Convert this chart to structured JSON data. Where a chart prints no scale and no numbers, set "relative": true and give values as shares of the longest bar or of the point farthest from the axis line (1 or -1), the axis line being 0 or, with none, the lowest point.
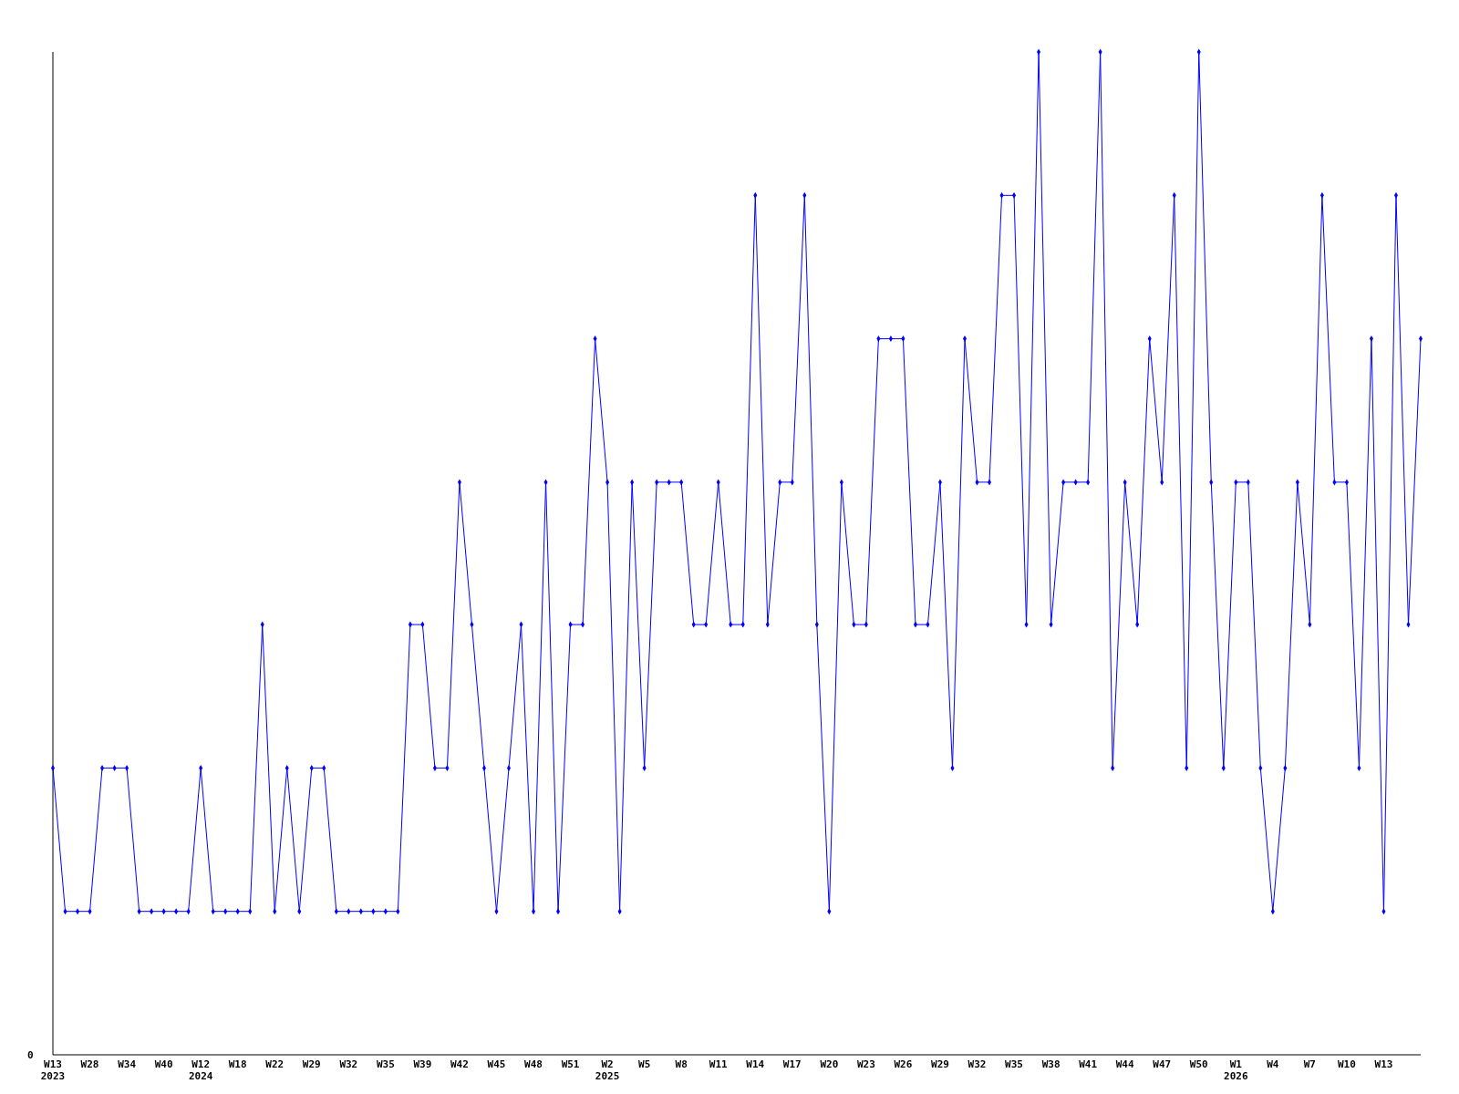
{
  "chart_data": {
    "type": "line",
    "relative": true,
    "marker": "diamond",
    "line_style": "solid",
    "annotations": [
      "0"
    ],
    "categories": [
      "W13\n2023",
      null,
      null,
      "W28",
      null,
      null,
      "W34",
      null,
      null,
      "W40",
      null,
      null,
      "W12\n2024",
      null,
      null,
      "W18",
      null,
      null,
      "W22",
      null,
      null,
      "W29",
      null,
      null,
      "W32",
      null,
      null,
      "W35",
      null,
      null,
      "W39",
      null,
      null,
      "W42",
      null,
      null,
      "W45",
      null,
      null,
      "W48",
      null,
      null,
      "W51",
      null,
      null,
      "W2\n2025",
      null,
      null,
      "W5",
      null,
      null,
      "W8",
      null,
      null,
      "W11",
      null,
      null,
      "W14",
      null,
      null,
      "W17",
      null,
      null,
      "W20",
      null,
      null,
      "W23",
      null,
      null,
      "W26",
      null,
      null,
      "W29",
      null,
      null,
      "W32",
      null,
      null,
      "W35",
      null,
      null,
      "W38",
      null,
      null,
      "W41",
      null,
      null,
      "W44",
      null,
      null,
      "W47",
      null,
      null,
      "W50",
      null,
      null,
      "W1\n2026",
      null,
      null,
      "W4",
      null,
      null,
      "W7",
      null,
      null,
      "W10",
      null,
      null,
      "W13",
      null,
      null,
      null
    ],
    "series": [
      {
        "color": "#0000ff",
        "values": [
          0.286,
          0.143,
          0.143,
          0.143,
          0.286,
          0.286,
          0.286,
          0.143,
          0.143,
          0.143,
          0.143,
          0.143,
          0.286,
          0.143,
          0.143,
          0.143,
          0.143,
          0.429,
          0.143,
          0.286,
          0.143,
          0.286,
          0.286,
          0.143,
          0.143,
          0.143,
          0.143,
          0.143,
          0.143,
          0.429,
          0.429,
          0.286,
          0.286,
          0.571,
          0.429,
          0.286,
          0.143,
          0.286,
          0.429,
          0.143,
          0.571,
          0.143,
          0.429,
          0.429,
          0.714,
          0.571,
          0.143,
          0.571,
          0.286,
          0.571,
          0.571,
          0.571,
          0.429,
          0.429,
          0.571,
          0.429,
          0.429,
          0.857,
          0.429,
          0.571,
          0.571,
          0.857,
          0.429,
          0.143,
          0.571,
          0.429,
          0.429,
          0.714,
          0.714,
          0.714,
          0.429,
          0.429,
          0.571,
          0.286,
          0.714,
          0.571,
          0.571,
          0.857,
          0.857,
          0.429,
          1,
          0.429,
          0.571,
          0.571,
          0.571,
          1,
          0.286,
          0.571,
          0.429,
          0.714,
          0.571,
          0.857,
          0.286,
          1,
          0.571,
          0.286,
          0.571,
          0.571,
          0.286,
          0.143,
          0.286,
          0.571,
          0.429,
          0.857,
          0.571,
          0.571,
          0.286,
          0.714,
          0.143,
          0.857,
          0.429,
          0.714
        ]
      }
    ]
  }
}
